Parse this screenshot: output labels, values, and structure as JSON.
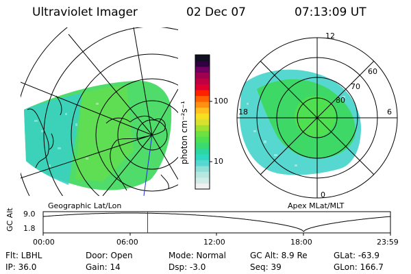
{
  "header": {
    "instrument": "Ultraviolet Imager",
    "date": "02 Dec 07",
    "time": "07:13:09 UT"
  },
  "panels": {
    "left_label": "Geographic Lat/Lon",
    "right_label": "Apex MLat/MLT"
  },
  "polar_labels": {
    "mlt": [
      "12",
      "18",
      "6",
      "0"
    ],
    "mlat": [
      "60",
      "70",
      "80"
    ]
  },
  "colorbar": {
    "unit_label": "photon cm⁻²s⁻¹",
    "ticks": [
      "100",
      "10"
    ],
    "colors": [
      "#f0f0f0",
      "#d0ece8",
      "#b6e8e0",
      "#90e0d8",
      "#55d8d0",
      "#2fd8c0",
      "#2cd8a0",
      "#3adc70",
      "#4ee050",
      "#6ee040",
      "#a0e030",
      "#d8e030",
      "#f8e020",
      "#ffc020",
      "#ff9010",
      "#ff6000",
      "#ff2000",
      "#e00030",
      "#c00040",
      "#a00050",
      "#700060",
      "#300040",
      "#101020"
    ]
  },
  "alt_strip": {
    "ylabel": "GC Alt",
    "yticks": [
      "9.0",
      "1.8"
    ],
    "xticks": [
      "00:00",
      "06:00",
      "12:00",
      "18:00",
      "23:59"
    ],
    "marker_time_hours": 7.22
  },
  "info": {
    "flt": "Flt: LBHL",
    "ip": "IP: 36.0",
    "door": "Door: Open",
    "gain": "Gain: 14",
    "mode": "Mode: Normal",
    "dsp": "Dsp:   -3.0",
    "gcalt": "GC Alt: 8.9 Re",
    "seq": "Seq: 39",
    "glat": "GLat: -63.9",
    "glon": "GLon: 166.7"
  },
  "colors": {
    "aurora_green": "#3cd85a",
    "aurora_teal": "#38d0c8",
    "marker_red": "#cc0000",
    "meridian_blue": "#2030d0"
  }
}
